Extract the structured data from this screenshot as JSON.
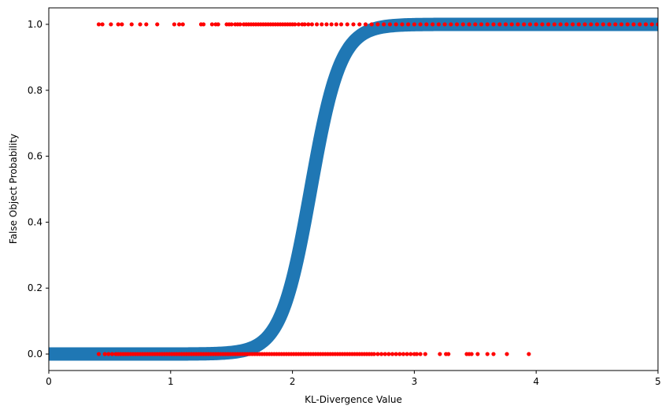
{
  "chart_data": {
    "type": "scatter",
    "title": "",
    "xlabel": "KL-Divergence Value",
    "ylabel": "False Object Probability",
    "xlim": [
      0,
      5
    ],
    "ylim": [
      -0.05,
      1.05
    ],
    "x_ticks": [
      0,
      1,
      2,
      3,
      4,
      5
    ],
    "x_tick_labels": [
      "0",
      "1",
      "2",
      "3",
      "4",
      "5"
    ],
    "y_ticks": [
      0.0,
      0.2,
      0.4,
      0.6,
      0.8,
      1.0
    ],
    "y_tick_labels": [
      "0.0",
      "0.2",
      "0.4",
      "0.6",
      "0.8",
      "1.0"
    ],
    "grid": false,
    "legend": "none",
    "series": [
      {
        "kind": "line",
        "color": "#1f77b4",
        "curve": "logistic",
        "midpoint": 2.15,
        "steepness": 8.2,
        "x_range": [
          0,
          5
        ]
      },
      {
        "kind": "points",
        "label_value": 1.0,
        "color": "#ff0000",
        "x": [
          0.41,
          0.44,
          0.51,
          0.57,
          0.6,
          0.68,
          0.75,
          0.8,
          0.89,
          1.03,
          1.07,
          1.1,
          1.25,
          1.27,
          1.34,
          1.37,
          1.39,
          1.46,
          1.48,
          1.5,
          1.53,
          1.55,
          1.57,
          1.6,
          1.62,
          1.64,
          1.66,
          1.68,
          1.7,
          1.72,
          1.74,
          1.76,
          1.78,
          1.8,
          1.82,
          1.84,
          1.86,
          1.88,
          1.9,
          1.92,
          1.94,
          1.96,
          1.98,
          2.0,
          2.02,
          2.05,
          2.08,
          2.1,
          2.13,
          2.16,
          2.2,
          2.24,
          2.28,
          2.32,
          2.36,
          2.4,
          2.45,
          2.5,
          2.55,
          2.6,
          2.65,
          2.7,
          2.75,
          2.8,
          2.85,
          2.9,
          2.95,
          3.0,
          3.05,
          3.1,
          3.15,
          3.2,
          3.25,
          3.3,
          3.35,
          3.4,
          3.45,
          3.5,
          3.55,
          3.6,
          3.65,
          3.7,
          3.75,
          3.8,
          3.85,
          3.9,
          3.95,
          4.0,
          4.05,
          4.1,
          4.15,
          4.2,
          4.25,
          4.3,
          4.35,
          4.4,
          4.45,
          4.5,
          4.55,
          4.6,
          4.65,
          4.7,
          4.75,
          4.8,
          4.85,
          4.9,
          4.95,
          5.0
        ]
      },
      {
        "kind": "points",
        "label_value": 0.0,
        "color": "#ff0000",
        "x": [
          0.41,
          0.46,
          0.49,
          0.52,
          0.55,
          0.57,
          0.59,
          0.61,
          0.63,
          0.65,
          0.67,
          0.69,
          0.71,
          0.73,
          0.75,
          0.77,
          0.79,
          0.81,
          0.83,
          0.85,
          0.87,
          0.89,
          0.91,
          0.93,
          0.95,
          0.97,
          0.99,
          1.01,
          1.03,
          1.05,
          1.07,
          1.09,
          1.11,
          1.13,
          1.15,
          1.17,
          1.19,
          1.21,
          1.23,
          1.25,
          1.27,
          1.29,
          1.31,
          1.33,
          1.35,
          1.37,
          1.39,
          1.41,
          1.43,
          1.45,
          1.47,
          1.49,
          1.51,
          1.53,
          1.55,
          1.57,
          1.59,
          1.61,
          1.63,
          1.65,
          1.67,
          1.69,
          1.71,
          1.73,
          1.75,
          1.77,
          1.79,
          1.81,
          1.83,
          1.85,
          1.87,
          1.89,
          1.91,
          1.93,
          1.95,
          1.97,
          1.99,
          2.01,
          2.03,
          2.05,
          2.07,
          2.09,
          2.11,
          2.13,
          2.15,
          2.17,
          2.19,
          2.21,
          2.23,
          2.25,
          2.27,
          2.29,
          2.31,
          2.33,
          2.35,
          2.37,
          2.39,
          2.41,
          2.43,
          2.45,
          2.47,
          2.49,
          2.51,
          2.53,
          2.55,
          2.57,
          2.59,
          2.61,
          2.63,
          2.65,
          2.67,
          2.7,
          2.73,
          2.76,
          2.79,
          2.82,
          2.85,
          2.88,
          2.91,
          2.94,
          2.97,
          3.0,
          3.02,
          3.05,
          3.09,
          3.21,
          3.26,
          3.28,
          3.43,
          3.45,
          3.47,
          3.52,
          3.6,
          3.65,
          3.76,
          3.94
        ]
      }
    ]
  }
}
